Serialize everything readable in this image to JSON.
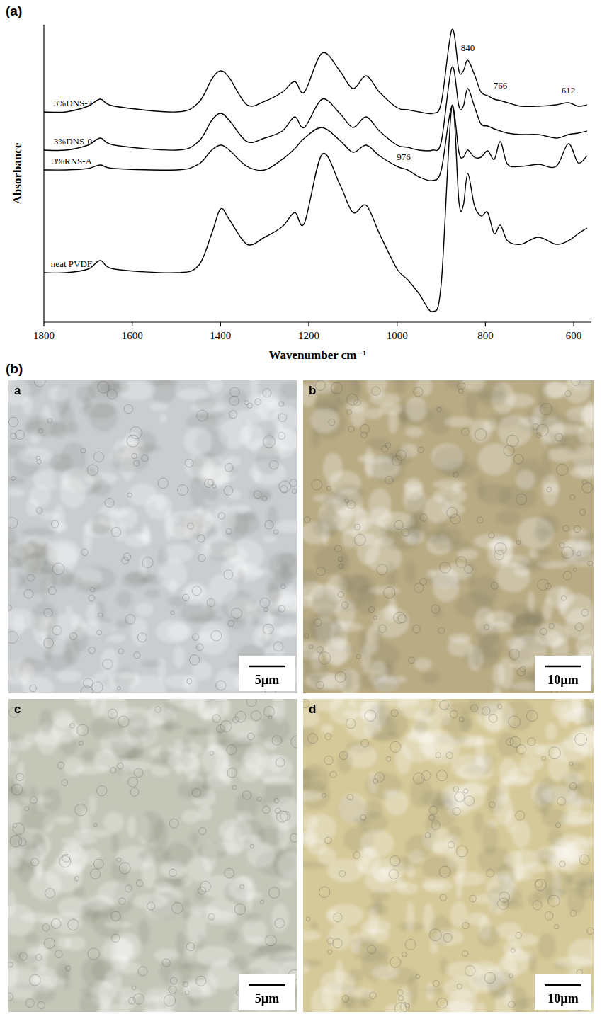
{
  "figure_labels": [
    "(a)",
    "(b)"
  ],
  "chart_data": {
    "type": "line",
    "x_label": "Wavenumber cm⁻¹",
    "y_label": "Absorbance",
    "x": [
      1800,
      1750,
      1700,
      1672,
      1640,
      1500,
      1450,
      1420,
      1400,
      1380,
      1340,
      1300,
      1260,
      1232,
      1210,
      1170,
      1130,
      1100,
      1070,
      1040,
      1000,
      976,
      950,
      920,
      900,
      876,
      860,
      850,
      840,
      825,
      810,
      795,
      780,
      766,
      750,
      720,
      680,
      640,
      612,
      590,
      570
    ],
    "xlim": [
      1800,
      560
    ],
    "xticks": [
      1800,
      1600,
      1400,
      1200,
      1000,
      800,
      600
    ],
    "ylim": [
      0,
      420
    ],
    "tick_labels": "x",
    "grid": false,
    "series": [
      {
        "name": "neat PVDF",
        "color": "#000000",
        "values": [
          70,
          70,
          75,
          87,
          75,
          70,
          80,
          125,
          160,
          145,
          110,
          120,
          135,
          155,
          140,
          237,
          195,
          155,
          165,
          125,
          75,
          60,
          40,
          15,
          55,
          305,
          170,
          165,
          210,
          165,
          150,
          155,
          125,
          137,
          115,
          110,
          120,
          110,
          115,
          125,
          133
        ]
      },
      {
        "name": "3%RNS-A",
        "color": "#000000",
        "values": [
          215,
          215,
          217,
          222,
          217,
          215,
          223,
          243,
          250,
          243,
          220,
          215,
          230,
          245,
          260,
          275,
          257,
          240,
          250,
          235,
          220,
          215,
          205,
          200,
          215,
          305,
          240,
          233,
          243,
          233,
          233,
          242,
          230,
          255,
          223,
          220,
          223,
          220,
          252,
          225,
          235
        ]
      },
      {
        "name": "3%DNS-0",
        "color": "#000000",
        "values": [
          243,
          243,
          250,
          260,
          250,
          243,
          255,
          285,
          295,
          285,
          255,
          260,
          270,
          290,
          275,
          315,
          295,
          275,
          290,
          270,
          250,
          247,
          243,
          243,
          255,
          360,
          305,
          305,
          330,
          305,
          280,
          277,
          273,
          270,
          267,
          265,
          265,
          260,
          265,
          267,
          270
        ]
      },
      {
        "name": "3%DNS-2",
        "color": "#000000",
        "values": [
          297,
          297,
          305,
          315,
          305,
          297,
          310,
          343,
          355,
          345,
          307,
          312,
          325,
          340,
          325,
          380,
          355,
          330,
          348,
          325,
          303,
          300,
          297,
          295,
          310,
          413,
          355,
          355,
          370,
          350,
          325,
          320,
          315,
          313,
          310,
          305,
          305,
          307,
          310,
          305,
          307
        ]
      }
    ],
    "annotations": [
      {
        "text": "840",
        "x": 840,
        "y": 383
      },
      {
        "text": "766",
        "x": 766,
        "y": 330
      },
      {
        "text": "612",
        "x": 612,
        "y": 323
      },
      {
        "text": "976",
        "x": 985,
        "y": 229
      }
    ]
  },
  "micrographs": [
    {
      "letter": "a",
      "scale_bar": "5µm",
      "color": "#c9cdd0"
    },
    {
      "letter": "b",
      "scale_bar": "10µm",
      "color": "#b9ab84"
    },
    {
      "letter": "c",
      "scale_bar": "5µm",
      "color": "#c4c6b8"
    },
    {
      "letter": "d",
      "scale_bar": "10µm",
      "color": "#d6c999"
    }
  ]
}
